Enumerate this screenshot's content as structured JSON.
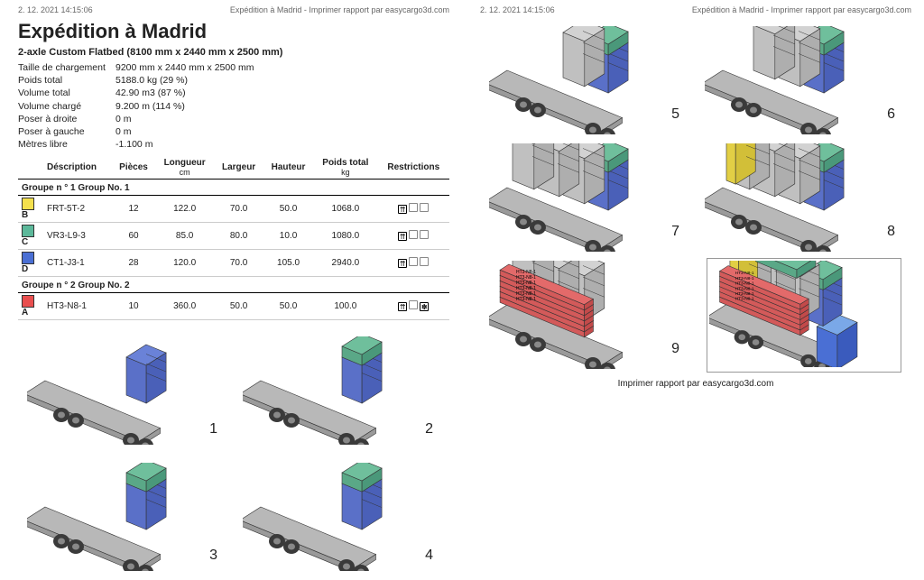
{
  "timestamp": "2. 12. 2021 14:15:06",
  "header_title": "Expédition à Madrid - Imprimer rapport par easycargo3d.com",
  "title": "Expédition à Madrid",
  "vehicle": "2-axle Custom Flatbed (8100 mm x 2440 mm x 2500 mm)",
  "stats": {
    "load_size_label": "Taille de chargement",
    "load_size_value": "9200 mm x 2440 mm x 2500 mm",
    "total_weight_label": "Poids total",
    "total_weight_value": "5188.0 kg (29 %)",
    "total_volume_label": "Volume total",
    "total_volume_value": "42.90 m3 (87 %)",
    "loaded_volume_label": "Volume chargé",
    "loaded_volume_value": "9.200 m (114 %)",
    "right_label": "Poser à droite",
    "right_value": "0 m",
    "left_label": "Poser à gauche",
    "left_value": "0 m",
    "free_label": "Mètres libre",
    "free_value": "-1.100 m"
  },
  "table": {
    "headers": {
      "desc": "Déscription",
      "pieces": "Pièces",
      "length": "Longueur",
      "width": "Largeur",
      "height": "Hauteur",
      "weight": "Poids total",
      "restr": "Restrictions",
      "unit_cm": "cm",
      "unit_kg": "kg"
    },
    "group1_label": "Groupe n ° 1 Group No. 1",
    "group2_label": "Groupe n ° 2 Group No. 2",
    "rows": [
      {
        "swatch": "#f4e04d",
        "letter": "B",
        "desc": "FRT-5T-2",
        "pieces": "12",
        "len": "122.0",
        "wid": "70.0",
        "hei": "50.0",
        "wt": "1068.0"
      },
      {
        "swatch": "#5cb89a",
        "letter": "C",
        "desc": "VR3-L9-3",
        "pieces": "60",
        "len": "85.0",
        "wid": "80.0",
        "hei": "10.0",
        "wt": "1080.0"
      },
      {
        "swatch": "#4a6fd4",
        "letter": "D",
        "desc": "CT1-J3-1",
        "pieces": "28",
        "len": "120.0",
        "wid": "70.0",
        "hei": "105.0",
        "wt": "2940.0"
      }
    ],
    "rows2": [
      {
        "swatch": "#e94f4f",
        "letter": "A",
        "desc": "HT3-N8-1",
        "pieces": "10",
        "len": "360.0",
        "wid": "50.0",
        "hei": "50.0",
        "wt": "100.0"
      }
    ]
  },
  "footer": "Imprimer rapport par easycargo3d.com",
  "colors": {
    "flatbed": "#b8b8b8",
    "flatbed_side": "#9a9a9a",
    "wheel": "#3a3a3a",
    "cab": "#4a6fd4",
    "blue": "#6a82d8",
    "green": "#6fbf9c",
    "grey": "#d2d2d2",
    "yellow": "#f2df55",
    "red": "#e36a6a",
    "outline": "#333333"
  },
  "step_labels": {
    "s1": "1",
    "s2": "2",
    "s3": "3",
    "s4": "4",
    "s5": "5",
    "s6": "6",
    "s7": "7",
    "s8": "8",
    "s9": "9"
  },
  "cargo_label": "HT3-N8-1"
}
